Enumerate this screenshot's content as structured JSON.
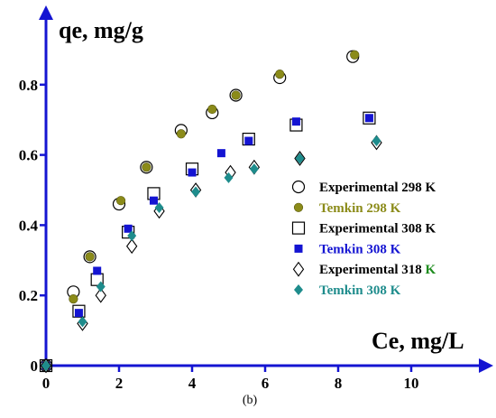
{
  "chart_data": {
    "type": "scatter",
    "ylabel": "qe, mg/g",
    "xlabel": "Ce, mg/L",
    "caption": "(b)",
    "xlim": [
      0,
      11.8
    ],
    "ylim": [
      0,
      1.0
    ],
    "xticks": [
      0,
      2,
      4,
      6,
      8,
      10
    ],
    "xtick_labels": [
      "0",
      "2",
      "4",
      "6",
      "8",
      "10"
    ],
    "yticks": [
      0,
      0.2,
      0.4,
      0.6,
      0.8
    ],
    "ytick_labels": [
      "0",
      "0.2",
      "0.4",
      "0.6",
      "0.8"
    ],
    "grid": false,
    "legend_position": "right",
    "colors": {
      "olive": "#8B8B19",
      "blue": "#1414D2",
      "teal": "#1E8C8C",
      "green": "#1E8C1E",
      "black": "#000000",
      "axis": "#1414D2"
    },
    "series": [
      {
        "name": "Experimental  298 K",
        "marker": "open-circle",
        "color": "#000000",
        "points": [
          [
            0,
            0
          ],
          [
            0.75,
            0.21
          ],
          [
            1.2,
            0.31
          ],
          [
            2.0,
            0.46
          ],
          [
            2.75,
            0.565
          ],
          [
            3.7,
            0.67
          ],
          [
            4.55,
            0.72
          ],
          [
            5.2,
            0.77
          ],
          [
            6.4,
            0.82
          ],
          [
            8.4,
            0.88
          ]
        ]
      },
      {
        "name": "Temkin 298 K",
        "marker": "filled-circle",
        "color": "#8B8B19",
        "points": [
          [
            0,
            0
          ],
          [
            0.75,
            0.19
          ],
          [
            1.2,
            0.31
          ],
          [
            2.05,
            0.47
          ],
          [
            2.75,
            0.565
          ],
          [
            3.7,
            0.66
          ],
          [
            4.55,
            0.73
          ],
          [
            5.2,
            0.77
          ],
          [
            6.4,
            0.83
          ],
          [
            8.45,
            0.885
          ]
        ]
      },
      {
        "name": "Experimental 308 K",
        "marker": "open-square",
        "color": "#000000",
        "points": [
          [
            0,
            0
          ],
          [
            0.9,
            0.155
          ],
          [
            1.4,
            0.245
          ],
          [
            2.25,
            0.38
          ],
          [
            2.95,
            0.49
          ],
          [
            4.0,
            0.56
          ],
          [
            5.55,
            0.645
          ],
          [
            6.85,
            0.685
          ],
          [
            8.85,
            0.705
          ]
        ]
      },
      {
        "name": "Temkin 308 K",
        "marker": "filled-square",
        "color": "#1414D2",
        "points": [
          [
            0,
            0
          ],
          [
            0.9,
            0.15
          ],
          [
            1.4,
            0.27
          ],
          [
            2.25,
            0.39
          ],
          [
            2.95,
            0.47
          ],
          [
            4.0,
            0.55
          ],
          [
            4.8,
            0.605
          ],
          [
            5.55,
            0.64
          ],
          [
            6.85,
            0.695
          ],
          [
            8.85,
            0.705
          ]
        ]
      },
      {
        "name": "Experimental 318",
        "name_suffix": " K",
        "marker": "open-diamond",
        "color": "#000000",
        "points": [
          [
            0,
            0
          ],
          [
            1.0,
            0.12
          ],
          [
            1.5,
            0.2
          ],
          [
            2.35,
            0.34
          ],
          [
            3.1,
            0.44
          ],
          [
            4.1,
            0.5
          ],
          [
            5.05,
            0.55
          ],
          [
            5.7,
            0.565
          ],
          [
            6.95,
            0.59
          ],
          [
            9.05,
            0.635
          ]
        ]
      },
      {
        "name": "Temkin 308 K",
        "marker": "filled-diamond",
        "color": "#1E8C8C",
        "points": [
          [
            0,
            0
          ],
          [
            1.0,
            0.125
          ],
          [
            1.5,
            0.225
          ],
          [
            2.35,
            0.37
          ],
          [
            3.1,
            0.45
          ],
          [
            4.1,
            0.495
          ],
          [
            5.0,
            0.535
          ],
          [
            5.7,
            0.56
          ],
          [
            6.95,
            0.59
          ],
          [
            9.05,
            0.64
          ]
        ]
      }
    ]
  }
}
